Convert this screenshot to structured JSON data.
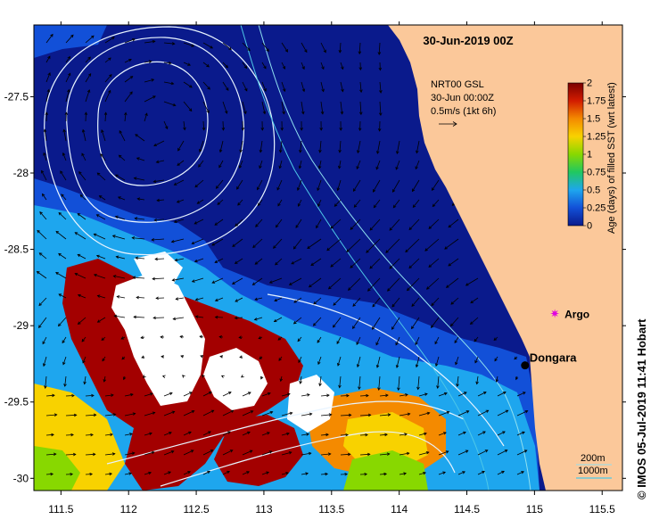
{
  "map": {
    "title": "30-Jun-2019 00Z",
    "credit": "© IMOS 05-Jul-2019 11:41 Hobart",
    "colors": {
      "land": "#fbc89a",
      "fresh": "#0a1a8c",
      "ocean_mid": "#1250d8",
      "ocean_light": "#1ea6ee",
      "stale": "#a30000",
      "no_data": "#ffffff",
      "contour": "#e8f4ff",
      "isobath_200": "#8fe0f0",
      "isobath_1000": "#4ec8e8",
      "argo": "#e000e0"
    },
    "x_axis": {
      "ticks": [
        "111.5",
        "112",
        "112.5",
        "113",
        "113.5",
        "114",
        "114.5",
        "115",
        "115.5"
      ]
    },
    "y_axis": {
      "ticks": [
        "-27.5",
        "-28",
        "-28.5",
        "-29",
        "-29.5",
        "-30"
      ]
    },
    "extent": {
      "lon_min": 111.3,
      "lon_max": 115.65,
      "lat_min": -30.08,
      "lat_max": -27.03
    },
    "current_legend": {
      "line1": "NRT00 GSL",
      "line2": "30-Jun 00:00Z",
      "line3": "0.5m/s (1kt 6h)"
    },
    "colorbar": {
      "title": "Age (days) of filled SST (wrt latest)",
      "ticks": [
        "2",
        "1.75",
        "1.5",
        "1.25",
        "1",
        "0.75",
        "0.5",
        "0.25",
        "0"
      ],
      "stops": [
        "#7a0000",
        "#d21c00",
        "#f48a00",
        "#f8d200",
        "#88d800",
        "#20c860",
        "#1ea6ee",
        "#1250d8",
        "#0a1a8c"
      ],
      "min": 0,
      "max": 2
    },
    "markers": [
      {
        "name": "Argo",
        "lon": 115.15,
        "lat": -28.92,
        "symbol": "star"
      },
      {
        "name": "Dongara",
        "lon": 114.93,
        "lat": -29.26,
        "symbol": "dot"
      }
    ],
    "isobath_legend": {
      "label_200": "200m",
      "label_1000": "1000m"
    }
  }
}
